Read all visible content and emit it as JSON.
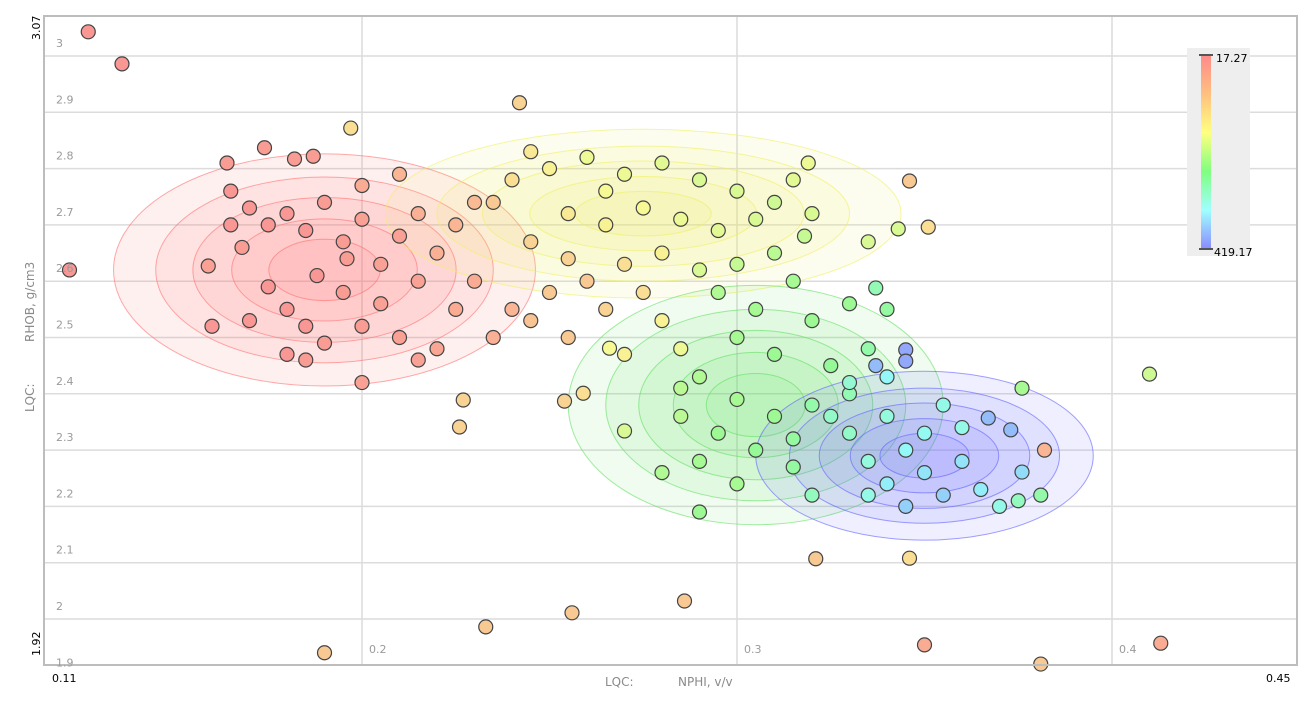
{
  "chart_data": {
    "type": "scatter",
    "xlabel_prefix": "LQC:",
    "xlabel": "NPHI, v/v",
    "ylabel_prefix": "LQC:",
    "ylabel": "RHOB, g/cm3",
    "xlim": [
      0.11,
      0.45
    ],
    "ylim": [
      1.92,
      3.07
    ],
    "xlim_labels": [
      "0.11",
      "0.45"
    ],
    "ylim_labels": [
      "1.92",
      "3.07"
    ],
    "xticks": [
      0.2,
      0.3,
      0.4
    ],
    "xtick_labels": [
      "0.2",
      "0.3",
      "0.4"
    ],
    "yticks": [
      1.9,
      2.0,
      2.1,
      2.2,
      2.3,
      2.4,
      2.5,
      2.6,
      2.7,
      2.8,
      2.9,
      3.0
    ],
    "ytick_labels": [
      "1.9",
      "2",
      "2.1",
      "2.2",
      "2.3",
      "2.4",
      "2.5",
      "2.6",
      "2.7",
      "2.8",
      "2.9",
      "3"
    ],
    "grid": true,
    "colorbar": {
      "min": 17.27,
      "max": 419.17,
      "min_label": "17.27",
      "max_label": "419.17",
      "placement": "top-right",
      "colors": [
        "#ff8a8a",
        "#ffc080",
        "#ffff80",
        "#80ff80",
        "#a0ffff",
        "#8a8aff"
      ]
    },
    "density_contours": [
      {
        "color": "#ff7070",
        "cx": 0.19,
        "cy": 2.62,
        "sx": 0.045,
        "sy": 0.165
      },
      {
        "color": "#f0f060",
        "cx": 0.275,
        "cy": 2.72,
        "sx": 0.055,
        "sy": 0.12
      },
      {
        "color": "#60e060",
        "cx": 0.305,
        "cy": 2.38,
        "sx": 0.04,
        "sy": 0.17
      },
      {
        "color": "#6060ff",
        "cx": 0.35,
        "cy": 2.29,
        "sx": 0.036,
        "sy": 0.12
      }
    ],
    "points": [
      [
        0.127,
        3.043,
        20
      ],
      [
        0.136,
        2.986,
        20
      ],
      [
        0.122,
        2.62,
        20
      ],
      [
        0.242,
        2.917,
        80
      ],
      [
        0.197,
        2.872,
        90
      ],
      [
        0.159,
        2.627,
        30
      ],
      [
        0.164,
        2.81,
        25
      ],
      [
        0.174,
        2.837,
        25
      ],
      [
        0.182,
        2.817,
        25
      ],
      [
        0.187,
        2.822,
        25
      ],
      [
        0.19,
        1.94,
        70
      ],
      [
        0.233,
        1.986,
        70
      ],
      [
        0.256,
        2.011,
        70
      ],
      [
        0.286,
        2.032,
        70
      ],
      [
        0.35,
        1.954,
        40
      ],
      [
        0.413,
        1.957,
        40
      ],
      [
        0.381,
        1.92,
        70
      ],
      [
        0.41,
        2.435,
        160
      ],
      [
        0.346,
        2.108,
        90
      ],
      [
        0.321,
        2.107,
        70
      ],
      [
        0.346,
        2.778,
        70
      ],
      [
        0.351,
        2.696,
        90
      ],
      [
        0.343,
        2.693,
        150
      ],
      [
        0.335,
        2.67,
        150
      ],
      [
        0.319,
        2.81,
        130
      ],
      [
        0.376,
        2.41,
        200
      ],
      [
        0.382,
        2.3,
        50
      ],
      [
        0.381,
        2.22,
        240
      ],
      [
        0.367,
        2.357,
        380
      ],
      [
        0.373,
        2.336,
        380
      ],
      [
        0.376,
        2.261,
        350
      ],
      [
        0.345,
        2.478,
        400
      ],
      [
        0.345,
        2.458,
        400
      ],
      [
        0.337,
        2.45,
        380
      ],
      [
        0.337,
        2.588,
        250
      ],
      [
        0.266,
        2.481,
        120
      ],
      [
        0.27,
        2.334,
        150
      ],
      [
        0.227,
        2.389,
        80
      ],
      [
        0.226,
        2.341,
        80
      ],
      [
        0.254,
        2.387,
        80
      ],
      [
        0.259,
        2.401,
        90
      ],
      [
        0.165,
        2.76,
        20
      ],
      [
        0.17,
        2.73,
        20
      ],
      [
        0.175,
        2.7,
        20
      ],
      [
        0.168,
        2.66,
        25
      ],
      [
        0.18,
        2.72,
        20
      ],
      [
        0.185,
        2.69,
        20
      ],
      [
        0.19,
        2.74,
        25
      ],
      [
        0.195,
        2.67,
        25
      ],
      [
        0.2,
        2.71,
        30
      ],
      [
        0.205,
        2.63,
        30
      ],
      [
        0.21,
        2.68,
        30
      ],
      [
        0.215,
        2.6,
        30
      ],
      [
        0.175,
        2.59,
        20
      ],
      [
        0.18,
        2.55,
        20
      ],
      [
        0.185,
        2.52,
        20
      ],
      [
        0.19,
        2.49,
        25
      ],
      [
        0.2,
        2.52,
        25
      ],
      [
        0.21,
        2.5,
        30
      ],
      [
        0.22,
        2.48,
        35
      ],
      [
        0.205,
        2.56,
        30
      ],
      [
        0.195,
        2.58,
        25
      ],
      [
        0.18,
        2.47,
        20
      ],
      [
        0.17,
        2.53,
        20
      ],
      [
        0.2,
        2.42,
        30
      ],
      [
        0.225,
        2.55,
        40
      ],
      [
        0.23,
        2.6,
        40
      ],
      [
        0.22,
        2.65,
        45
      ],
      [
        0.215,
        2.72,
        45
      ],
      [
        0.2,
        2.77,
        40
      ],
      [
        0.21,
        2.79,
        50
      ],
      [
        0.196,
        2.64,
        25
      ],
      [
        0.188,
        2.61,
        20
      ],
      [
        0.165,
        2.7,
        20
      ],
      [
        0.16,
        2.52,
        20
      ],
      [
        0.185,
        2.46,
        25
      ],
      [
        0.215,
        2.46,
        30
      ],
      [
        0.235,
        2.5,
        45
      ],
      [
        0.24,
        2.55,
        50
      ],
      [
        0.225,
        2.7,
        50
      ],
      [
        0.23,
        2.74,
        55
      ],
      [
        0.24,
        2.78,
        90
      ],
      [
        0.25,
        2.8,
        110
      ],
      [
        0.26,
        2.82,
        130
      ],
      [
        0.27,
        2.79,
        130
      ],
      [
        0.28,
        2.81,
        140
      ],
      [
        0.29,
        2.78,
        150
      ],
      [
        0.3,
        2.76,
        150
      ],
      [
        0.31,
        2.74,
        160
      ],
      [
        0.32,
        2.72,
        150
      ],
      [
        0.255,
        2.72,
        100
      ],
      [
        0.265,
        2.7,
        110
      ],
      [
        0.275,
        2.73,
        120
      ],
      [
        0.285,
        2.71,
        130
      ],
      [
        0.295,
        2.69,
        140
      ],
      [
        0.305,
        2.71,
        150
      ],
      [
        0.245,
        2.67,
        80
      ],
      [
        0.255,
        2.64,
        80
      ],
      [
        0.26,
        2.6,
        70
      ],
      [
        0.27,
        2.63,
        90
      ],
      [
        0.28,
        2.65,
        110
      ],
      [
        0.29,
        2.62,
        150
      ],
      [
        0.3,
        2.63,
        170
      ],
      [
        0.25,
        2.58,
        70
      ],
      [
        0.245,
        2.53,
        65
      ],
      [
        0.255,
        2.5,
        70
      ],
      [
        0.265,
        2.55,
        80
      ],
      [
        0.275,
        2.58,
        90
      ],
      [
        0.235,
        2.74,
        70
      ],
      [
        0.245,
        2.83,
        100
      ],
      [
        0.265,
        2.76,
        120
      ],
      [
        0.315,
        2.78,
        140
      ],
      [
        0.318,
        2.68,
        170
      ],
      [
        0.31,
        2.65,
        180
      ],
      [
        0.28,
        2.53,
        110
      ],
      [
        0.285,
        2.48,
        130
      ],
      [
        0.27,
        2.47,
        110
      ],
      [
        0.295,
        2.58,
        190
      ],
      [
        0.305,
        2.55,
        200
      ],
      [
        0.315,
        2.6,
        200
      ],
      [
        0.32,
        2.53,
        210
      ],
      [
        0.33,
        2.56,
        210
      ],
      [
        0.3,
        2.5,
        200
      ],
      [
        0.31,
        2.47,
        210
      ],
      [
        0.325,
        2.45,
        220
      ],
      [
        0.29,
        2.43,
        190
      ],
      [
        0.3,
        2.39,
        200
      ],
      [
        0.31,
        2.36,
        210
      ],
      [
        0.295,
        2.33,
        210
      ],
      [
        0.305,
        2.3,
        220
      ],
      [
        0.285,
        2.36,
        180
      ],
      [
        0.29,
        2.28,
        200
      ],
      [
        0.3,
        2.24,
        200
      ],
      [
        0.29,
        2.19,
        210
      ],
      [
        0.315,
        2.32,
        230
      ],
      [
        0.32,
        2.38,
        240
      ],
      [
        0.33,
        2.4,
        250
      ],
      [
        0.335,
        2.48,
        240
      ],
      [
        0.34,
        2.55,
        230
      ],
      [
        0.28,
        2.26,
        190
      ],
      [
        0.285,
        2.41,
        180
      ],
      [
        0.315,
        2.27,
        230
      ],
      [
        0.33,
        2.33,
        270
      ],
      [
        0.335,
        2.28,
        290
      ],
      [
        0.34,
        2.36,
        290
      ],
      [
        0.345,
        2.3,
        320
      ],
      [
        0.35,
        2.26,
        340
      ],
      [
        0.355,
        2.22,
        360
      ],
      [
        0.36,
        2.28,
        340
      ],
      [
        0.365,
        2.23,
        330
      ],
      [
        0.37,
        2.2,
        300
      ],
      [
        0.34,
        2.24,
        330
      ],
      [
        0.345,
        2.2,
        360
      ],
      [
        0.35,
        2.33,
        310
      ],
      [
        0.355,
        2.38,
        300
      ],
      [
        0.33,
        2.42,
        280
      ],
      [
        0.325,
        2.36,
        270
      ],
      [
        0.36,
        2.34,
        300
      ],
      [
        0.375,
        2.21,
        260
      ],
      [
        0.34,
        2.43,
        320
      ],
      [
        0.335,
        2.22,
        300
      ],
      [
        0.32,
        2.22,
        260
      ]
    ]
  }
}
